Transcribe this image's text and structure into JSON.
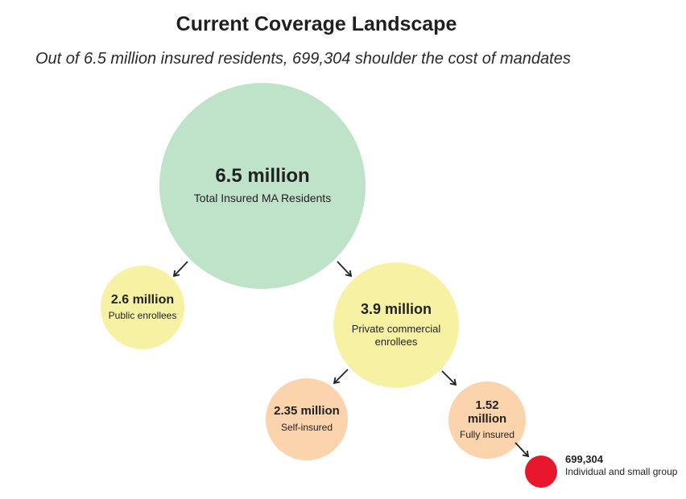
{
  "title": "Current Coverage Landscape",
  "subtitle": "Out of 6.5 million insured residents, 699,304 shoulder the cost of mandates",
  "colors": {
    "green": "#bfe3c9",
    "yellow": "#f7f1a3",
    "peach": "#fbd3ac",
    "red": "#e8172e",
    "arrow": "#222222"
  },
  "nodes": {
    "total": {
      "value": "6.5 million",
      "label": "Total Insured MA Residents"
    },
    "public": {
      "value": "2.6 million",
      "label": "Public enrollees"
    },
    "private": {
      "value": "3.9 million",
      "label": "Private commercial enrollees"
    },
    "self": {
      "value": "2.35 million",
      "label": "Self-insured"
    },
    "fully": {
      "value": "1.52 million",
      "label": "Fully insured"
    },
    "small": {
      "value": "699,304",
      "label": "Individual and small group"
    }
  }
}
